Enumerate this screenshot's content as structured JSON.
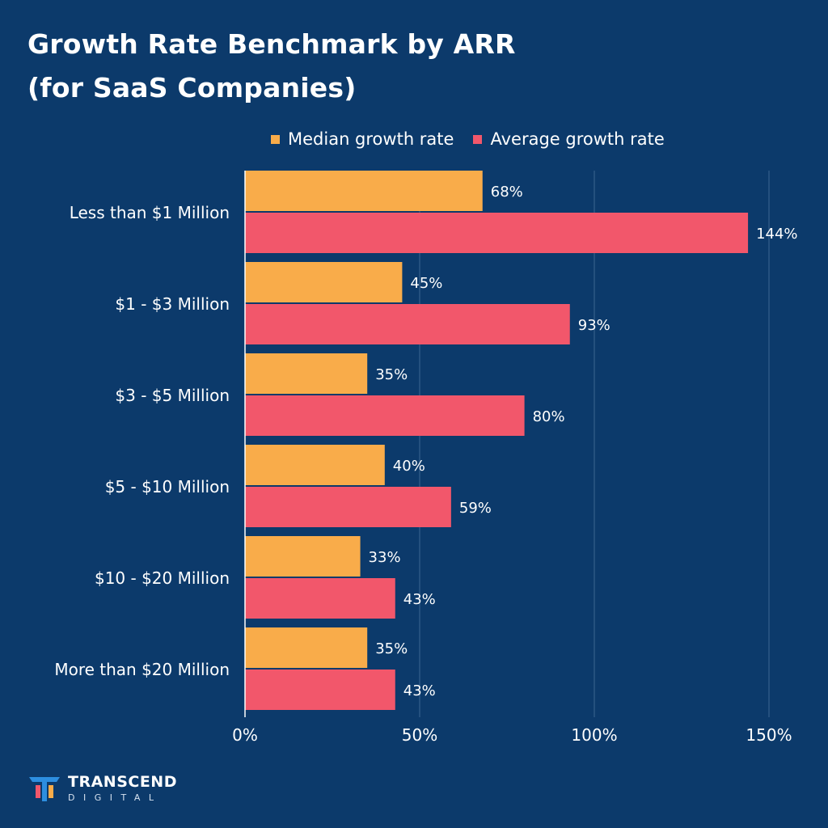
{
  "title_line1": "Growth Rate Benchmark by ARR",
  "title_line2": "(for SaaS Companies)",
  "colors": {
    "background": "#0c3a6b",
    "median": "#f9ac4a",
    "average": "#f2576b",
    "grid": "#3d6591"
  },
  "brand": {
    "name": "TRANSCEND",
    "sub": "DIGITAL",
    "logo_icon": "transcend-logo-icon"
  },
  "chart_data": {
    "type": "bar",
    "orientation": "horizontal",
    "categories": [
      "Less than $1 Million",
      "$1 - $3 Million",
      "$3 - $5 Million",
      "$5 - $10 Million",
      "$10 - $20 Million",
      "More than $20 Million"
    ],
    "series": [
      {
        "name": "Median growth rate",
        "values": [
          68,
          45,
          35,
          40,
          33,
          35
        ],
        "labels": [
          "68%",
          "45%",
          "35%",
          "40%",
          "33%",
          "35%"
        ]
      },
      {
        "name": "Average growth rate",
        "values": [
          144,
          93,
          80,
          59,
          43,
          43
        ],
        "labels": [
          "144%",
          "93%",
          "80%",
          "59%",
          "43%",
          "43%"
        ]
      }
    ],
    "xlim": [
      0,
      150
    ],
    "xticks": [
      0,
      50,
      100,
      150
    ],
    "xtick_labels": [
      "0%",
      "50%",
      "100%",
      "150%"
    ],
    "grid": true,
    "legend": "top"
  }
}
